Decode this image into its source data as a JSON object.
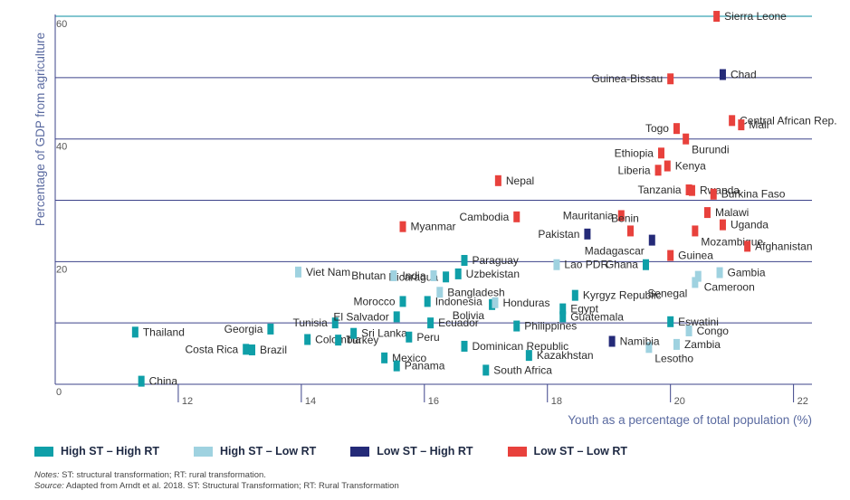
{
  "chart_data": {
    "type": "scatter",
    "title": "",
    "xlabel": "Youth as a percentage of total population (%)",
    "ylabel": "Percentage of GDP from agriculture",
    "xlim": [
      10,
      22.3
    ],
    "ylim": [
      0,
      60.3
    ],
    "x_ticks": [
      12,
      14,
      16,
      18,
      20,
      22
    ],
    "y_ticks": [
      0,
      10,
      20,
      30,
      40,
      50,
      60
    ],
    "y_tick_labels": [
      "0",
      "",
      "20",
      "",
      "40",
      "",
      "60"
    ],
    "grid": "horizontal",
    "legend_position": "bottom",
    "series": [
      {
        "name": "High ST – High RT",
        "color": "#0f9fa8",
        "points": [
          {
            "label": "Thailand",
            "x": 11.3,
            "y": 8.5
          },
          {
            "label": "China",
            "x": 11.4,
            "y": 0.5
          },
          {
            "label": "Georgia",
            "x": 13.5,
            "y": 9.0
          },
          {
            "label": "Costa Rica",
            "x": 13.1,
            "y": 5.7
          },
          {
            "label": "Brazil",
            "x": 13.2,
            "y": 5.6
          },
          {
            "label": "Colombia",
            "x": 14.1,
            "y": 7.3
          },
          {
            "label": "Tunisia",
            "x": 14.55,
            "y": 10.0
          },
          {
            "label": "Turkey",
            "x": 14.6,
            "y": 7.2
          },
          {
            "label": "Sri Lanka",
            "x": 14.85,
            "y": 8.3
          },
          {
            "label": "Mexico",
            "x": 15.35,
            "y": 4.3
          },
          {
            "label": "Panama",
            "x": 15.55,
            "y": 3.0
          },
          {
            "label": "Peru",
            "x": 15.75,
            "y": 7.7
          },
          {
            "label": "El Salvador",
            "x": 15.55,
            "y": 11.0
          },
          {
            "label": "Morocco",
            "x": 15.65,
            "y": 13.5
          },
          {
            "label": "Indonesia",
            "x": 16.05,
            "y": 13.5
          },
          {
            "label": "Ecuador",
            "x": 16.1,
            "y": 10.0
          },
          {
            "label": "Nicaragua",
            "x": 16.35,
            "y": 17.5
          },
          {
            "label": "Uzbekistan",
            "x": 16.55,
            "y": 18.0
          },
          {
            "label": "Paraguay",
            "x": 16.65,
            "y": 20.2
          },
          {
            "label": "Dominican Republic",
            "x": 16.65,
            "y": 6.2
          },
          {
            "label": "Bolivia",
            "x": 17.1,
            "y": 13.0
          },
          {
            "label": "South Africa",
            "x": 17.0,
            "y": 2.3
          },
          {
            "label": "Philippines",
            "x": 17.5,
            "y": 9.5
          },
          {
            "label": "Kazakhstan",
            "x": 17.7,
            "y": 4.7
          },
          {
            "label": "Egypt",
            "x": 18.25,
            "y": 12.3
          },
          {
            "label": "Guatemala",
            "x": 18.25,
            "y": 11.0
          },
          {
            "label": "Kyrgyz Republic",
            "x": 18.45,
            "y": 14.5
          },
          {
            "label": "Ghana",
            "x": 19.6,
            "y": 19.5
          },
          {
            "label": "Eswatini",
            "x": 20.0,
            "y": 10.2
          }
        ]
      },
      {
        "name": "High ST – Low RT",
        "color": "#9fd2e0",
        "points": [
          {
            "label": "Viet Nam",
            "x": 13.95,
            "y": 18.3
          },
          {
            "label": "Bhutan",
            "x": 15.5,
            "y": 17.7
          },
          {
            "label": "India",
            "x": 16.15,
            "y": 17.7
          },
          {
            "label": "Bangladesh",
            "x": 16.25,
            "y": 15.0
          },
          {
            "label": "Honduras",
            "x": 17.15,
            "y": 13.3
          },
          {
            "label": "Lao PDR",
            "x": 18.15,
            "y": 19.5
          },
          {
            "label": "Senegal",
            "x": 20.4,
            "y": 16.6
          },
          {
            "label": "Cameroon",
            "x": 20.45,
            "y": 17.6
          },
          {
            "label": "Gambia",
            "x": 20.8,
            "y": 18.2
          },
          {
            "label": "Congo",
            "x": 20.3,
            "y": 8.7
          },
          {
            "label": "Lesotho",
            "x": 19.65,
            "y": 6.0
          },
          {
            "label": "Zambia",
            "x": 20.1,
            "y": 6.5
          }
        ]
      },
      {
        "name": "Low ST – High RT",
        "color": "#242a78",
        "points": [
          {
            "label": "Chad",
            "x": 20.85,
            "y": 50.5
          },
          {
            "label": "Pakistan",
            "x": 18.65,
            "y": 24.5
          },
          {
            "label": "Madagascar",
            "x": 19.7,
            "y": 23.5
          },
          {
            "label": "Namibia",
            "x": 19.05,
            "y": 7.0
          }
        ]
      },
      {
        "name": "Low ST – Low RT",
        "color": "#e8413c",
        "points": [
          {
            "label": "Sierra Leone",
            "x": 20.75,
            "y": 60.0
          },
          {
            "label": "Guinea-Bissau",
            "x": 20.0,
            "y": 49.8
          },
          {
            "label": "Central African Rep.",
            "x": 21.0,
            "y": 43.0
          },
          {
            "label": "Mali",
            "x": 21.15,
            "y": 42.3
          },
          {
            "label": "Togo",
            "x": 20.1,
            "y": 41.7
          },
          {
            "label": "Burundi",
            "x": 20.25,
            "y": 40.0
          },
          {
            "label": "Ethiopia",
            "x": 19.85,
            "y": 37.7
          },
          {
            "label": "Kenya",
            "x": 19.95,
            "y": 35.6
          },
          {
            "label": "Liberia",
            "x": 19.8,
            "y": 34.9
          },
          {
            "label": "Tanzania",
            "x": 20.3,
            "y": 31.7
          },
          {
            "label": "Rwanda",
            "x": 20.35,
            "y": 31.6
          },
          {
            "label": "Burkina Faso",
            "x": 20.7,
            "y": 31.0
          },
          {
            "label": "Nepal",
            "x": 17.2,
            "y": 33.2
          },
          {
            "label": "Cambodia",
            "x": 17.5,
            "y": 27.3
          },
          {
            "label": "Mauritania",
            "x": 19.2,
            "y": 27.5
          },
          {
            "label": "Benin",
            "x": 19.35,
            "y": 25.0
          },
          {
            "label": "Malawi",
            "x": 20.6,
            "y": 28.0
          },
          {
            "label": "Uganda",
            "x": 20.85,
            "y": 26.0
          },
          {
            "label": "Mozambique",
            "x": 20.4,
            "y": 25.0
          },
          {
            "label": "Guinea",
            "x": 20.0,
            "y": 21.0
          },
          {
            "label": "Afghanistan",
            "x": 21.25,
            "y": 22.5
          },
          {
            "label": "Myanmar",
            "x": 15.65,
            "y": 25.7
          }
        ]
      }
    ]
  },
  "legend": {
    "items": [
      {
        "label": "High ST – High RT",
        "color": "#0f9fa8"
      },
      {
        "label": "High ST – Low RT",
        "color": "#9fd2e0"
      },
      {
        "label": "Low ST – High RT",
        "color": "#242a78"
      },
      {
        "label": "Low ST – Low RT",
        "color": "#e8413c"
      }
    ]
  },
  "notes": {
    "notes_label": "Notes:",
    "notes_text": "ST: structural transformation; RT: rural transformation.",
    "source_label": "Source:",
    "source_text": "Adapted from Arndt et al. 2018. ST: Structural Transformation; RT: Rural Transformation"
  }
}
